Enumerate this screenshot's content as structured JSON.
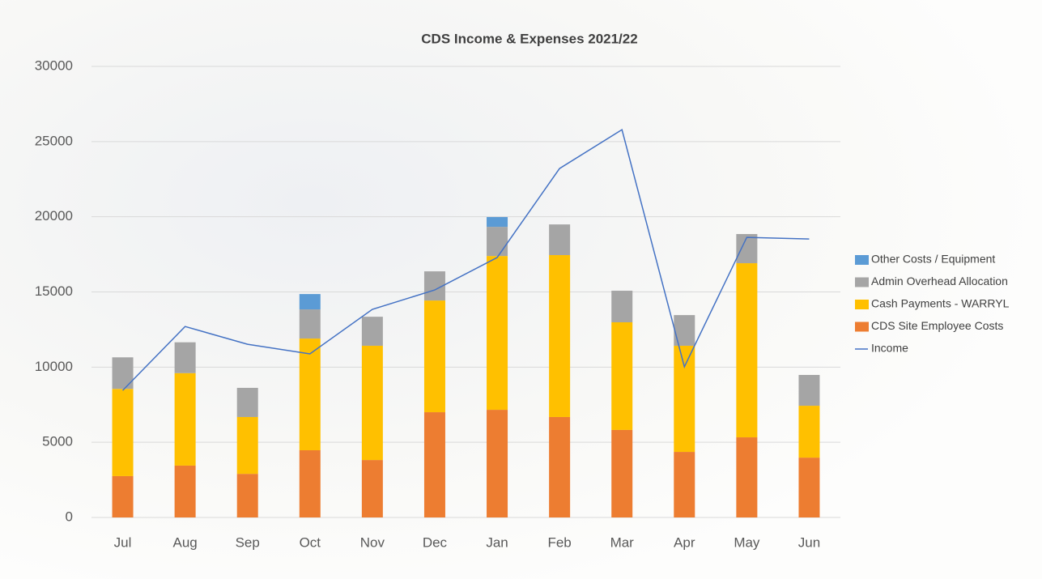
{
  "chart_data": {
    "type": "bar",
    "title": "CDS Income & Expenses 2021/22",
    "categories": [
      "Jul",
      "Aug",
      "Sep",
      "Oct",
      "Nov",
      "Dec",
      "Jan",
      "Feb",
      "Mar",
      "Apr",
      "May",
      "Jun"
    ],
    "series": [
      {
        "name": "CDS Site Employee Costs",
        "color": "#ed7d31",
        "type": "bar",
        "values": [
          2750,
          3450,
          2900,
          4470,
          3820,
          7000,
          7160,
          6680,
          5820,
          4360,
          5330,
          3980
        ]
      },
      {
        "name": "Cash Payments - WARRYL",
        "color": "#ffc000",
        "type": "bar",
        "values": [
          5800,
          6150,
          3780,
          7430,
          7600,
          7430,
          10230,
          10770,
          7160,
          7060,
          11580,
          3450
        ]
      },
      {
        "name": "Admin Overhead Allocation",
        "color": "#a5a5a5",
        "type": "bar",
        "values": [
          2100,
          2050,
          1940,
          1940,
          1930,
          1940,
          1940,
          2040,
          2100,
          2040,
          1940,
          2050
        ]
      },
      {
        "name": "Other Costs / Equipment",
        "color": "#5b9bd5",
        "type": "bar",
        "values": [
          0,
          0,
          0,
          1020,
          0,
          0,
          650,
          0,
          0,
          0,
          0,
          0
        ]
      },
      {
        "name": "Income",
        "color": "#4472c4",
        "type": "line",
        "values": [
          8450,
          12700,
          11520,
          10880,
          13840,
          15130,
          17290,
          23210,
          25790,
          10020,
          18630,
          18520
        ]
      }
    ],
    "ylim": [
      0,
      30000
    ],
    "yticks": [
      0,
      5000,
      10000,
      15000,
      20000,
      25000,
      30000
    ],
    "grid": true,
    "legend": "right"
  }
}
